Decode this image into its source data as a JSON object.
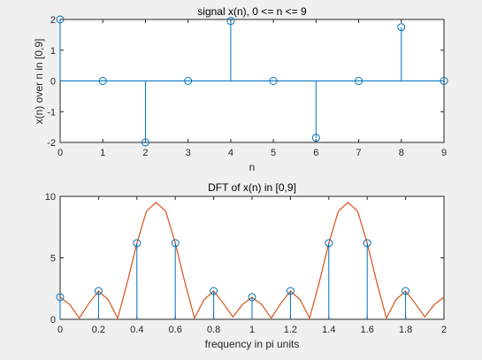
{
  "window": {
    "background": "#f0f0f0",
    "axes_background": "#ffffff"
  },
  "chart_data": [
    {
      "type": "stem",
      "title": "signal x(n), 0 <= n <= 9",
      "xlabel": "n",
      "ylabel": "x(n) over n in [0,9]",
      "xlim": [
        0,
        9
      ],
      "ylim": [
        -2,
        2
      ],
      "xticks": [
        0,
        1,
        2,
        3,
        4,
        5,
        6,
        7,
        8,
        9
      ],
      "xtick_labels": [
        "0",
        "1",
        "2",
        "3",
        "4",
        "5",
        "6",
        "7",
        "8",
        "9"
      ],
      "yticks": [
        -2,
        -1,
        0,
        1,
        2
      ],
      "ytick_labels": [
        "-2",
        "-1",
        "0",
        "1",
        "2"
      ],
      "grid": false,
      "stem_color": "#0072bd",
      "series": [
        {
          "x": [
            0,
            1,
            2,
            3,
            4,
            5,
            6,
            7,
            8,
            9
          ],
          "y": [
            2,
            0,
            -2,
            0,
            1.95,
            0,
            -1.85,
            0,
            1.75,
            0
          ]
        }
      ]
    },
    {
      "type": "stem+line",
      "title": "DFT of x(n) in [0,9]",
      "xlabel": "frequency in pi units",
      "ylabel": "",
      "xlim": [
        0,
        2
      ],
      "ylim": [
        0,
        10
      ],
      "xticks": [
        0,
        0.2,
        0.4,
        0.6,
        0.8,
        1,
        1.2,
        1.4,
        1.6,
        1.8,
        2
      ],
      "xtick_labels": [
        "0",
        "0.2",
        "0.4",
        "0.6",
        "0.8",
        "1",
        "1.2",
        "1.4",
        "1.6",
        "1.8",
        "2"
      ],
      "yticks": [
        0,
        5,
        10
      ],
      "ytick_labels": [
        "0",
        "5",
        "10"
      ],
      "grid": false,
      "line_color": "#d95319",
      "stem_color": "#0072bd",
      "series": [
        {
          "kind": "stem",
          "x": [
            0,
            0.2,
            0.4,
            0.6,
            0.8,
            1,
            1.2,
            1.4,
            1.6,
            1.8
          ],
          "y": [
            1.8,
            2.3,
            6.2,
            6.2,
            2.3,
            1.8,
            2.3,
            6.2,
            6.2,
            2.3
          ]
        },
        {
          "kind": "line",
          "x": [
            0,
            0.05,
            0.1,
            0.15,
            0.2,
            0.25,
            0.3,
            0.35,
            0.4,
            0.45,
            0.5,
            0.55,
            0.6,
            0.65,
            0.7,
            0.75,
            0.8,
            0.85,
            0.9,
            0.95,
            1,
            1.05,
            1.1,
            1.15,
            1.2,
            1.25,
            1.3,
            1.35,
            1.4,
            1.45,
            1.5,
            1.55,
            1.6,
            1.65,
            1.7,
            1.75,
            1.8,
            1.85,
            1.9,
            1.95,
            2
          ],
          "y": [
            1.8,
            1.2,
            0.1,
            1.3,
            2.3,
            1.6,
            0.1,
            3.0,
            6.2,
            8.8,
            9.5,
            8.8,
            6.2,
            3.0,
            0.1,
            1.6,
            2.3,
            1.3,
            0.2,
            1.2,
            1.8,
            1.2,
            0.1,
            1.3,
            2.3,
            1.6,
            0.1,
            3.0,
            6.2,
            8.8,
            9.5,
            8.8,
            6.2,
            3.0,
            0.1,
            1.6,
            2.3,
            1.3,
            0.2,
            1.2,
            1.8
          ]
        }
      ]
    }
  ]
}
